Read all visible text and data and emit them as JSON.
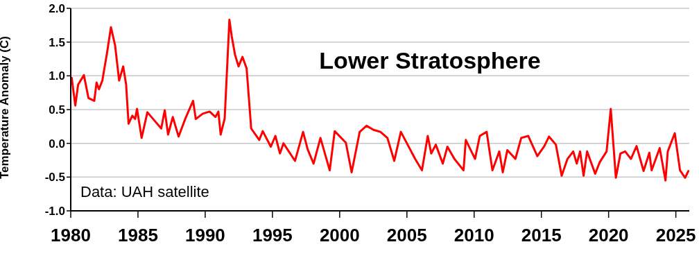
{
  "chart_data": {
    "type": "line",
    "title": "Lower Stratosphere",
    "ylabel": "Temperature Anomaly (C)",
    "annotations": [
      "Data: UAH satellite"
    ],
    "xlim": [
      1980,
      2026
    ],
    "xticks": [
      1980,
      1985,
      1990,
      1995,
      2000,
      2005,
      2010,
      2015,
      2020,
      2025
    ],
    "ylim": [
      -1,
      2
    ],
    "yticks": [
      {
        "value": -1,
        "label": "-1.0"
      },
      -0.5,
      {
        "value": 0,
        "label": "0.0"
      },
      0.5,
      {
        "value": 1,
        "label": "1.0"
      },
      1.5,
      {
        "value": 2,
        "label": "2.0"
      }
    ],
    "grid": "y",
    "marker": "none",
    "line_style": "solid",
    "series": [
      {
        "color": "#ff0000",
        "x": [
          1980.07,
          1980.34,
          1980.55,
          1980.98,
          1981.32,
          1981.75,
          1981.92,
          1982.1,
          1982.35,
          1982.7,
          1982.99,
          1983.3,
          1983.6,
          1983.9,
          1984.12,
          1984.3,
          1984.58,
          1984.79,
          1984.93,
          1985.27,
          1985.7,
          1986.13,
          1986.73,
          1986.99,
          1987.24,
          1987.59,
          1988.02,
          1988.53,
          1989.1,
          1989.3,
          1989.82,
          1990.33,
          1990.76,
          1990.98,
          1991.15,
          1991.45,
          1991.8,
          1991.97,
          1992.22,
          1992.48,
          1992.77,
          1993.08,
          1993.42,
          1994.02,
          1994.28,
          1994.88,
          1995.22,
          1995.56,
          1995.82,
          1996.68,
          1997.28,
          1997.62,
          1998.06,
          1998.57,
          1999.26,
          1999.63,
          2000.46,
          2000.89,
          2001.49,
          2002.0,
          2002.52,
          2003.03,
          2003.55,
          2004.06,
          2004.55,
          2005.0,
          2005.61,
          2006.12,
          2006.55,
          2006.81,
          2007.15,
          2007.67,
          2008.01,
          2008.53,
          2009.21,
          2009.38,
          2010.07,
          2010.42,
          2010.93,
          2011.36,
          2011.87,
          2012.13,
          2012.47,
          2013.07,
          2013.5,
          2014.02,
          2014.7,
          2015.22,
          2015.57,
          2016.08,
          2016.51,
          2016.94,
          2017.37,
          2017.63,
          2017.88,
          2018.14,
          2018.4,
          2019.0,
          2019.34,
          2019.85,
          2020.16,
          2020.54,
          2020.88,
          2021.23,
          2021.66,
          2022.08,
          2022.6,
          2023.03,
          2023.2,
          2023.8,
          2024.23,
          2024.4,
          2024.92,
          2025.31,
          2025.69,
          2025.93
        ],
        "values": [
          0.97,
          0.56,
          0.87,
          1.01,
          0.67,
          0.63,
          0.9,
          0.8,
          0.93,
          1.34,
          1.72,
          1.45,
          0.93,
          1.14,
          0.87,
          0.29,
          0.41,
          0.36,
          0.51,
          0.08,
          0.46,
          0.36,
          0.22,
          0.49,
          0.13,
          0.39,
          0.1,
          0.37,
          0.63,
          0.36,
          0.44,
          0.47,
          0.39,
          0.47,
          0.13,
          0.37,
          1.83,
          1.59,
          1.31,
          1.14,
          1.28,
          1.11,
          0.22,
          0.05,
          0.18,
          -0.05,
          0.11,
          -0.15,
          0.0,
          -0.26,
          0.17,
          -0.09,
          -0.3,
          0.08,
          -0.4,
          0.18,
          0.01,
          -0.43,
          0.17,
          0.26,
          0.2,
          0.17,
          0.08,
          -0.26,
          0.17,
          0.0,
          -0.23,
          -0.4,
          0.11,
          -0.15,
          -0.02,
          -0.3,
          -0.05,
          -0.23,
          -0.4,
          0.05,
          -0.23,
          0.11,
          0.17,
          -0.4,
          -0.12,
          -0.43,
          -0.1,
          -0.23,
          0.08,
          0.11,
          -0.19,
          -0.04,
          0.1,
          -0.02,
          -0.48,
          -0.23,
          -0.12,
          -0.3,
          -0.12,
          -0.48,
          -0.12,
          -0.45,
          -0.28,
          -0.12,
          0.51,
          -0.51,
          -0.15,
          -0.12,
          -0.23,
          -0.04,
          -0.41,
          -0.14,
          -0.4,
          -0.07,
          -0.55,
          -0.12,
          0.15,
          -0.4,
          -0.51,
          -0.41
        ]
      }
    ]
  }
}
